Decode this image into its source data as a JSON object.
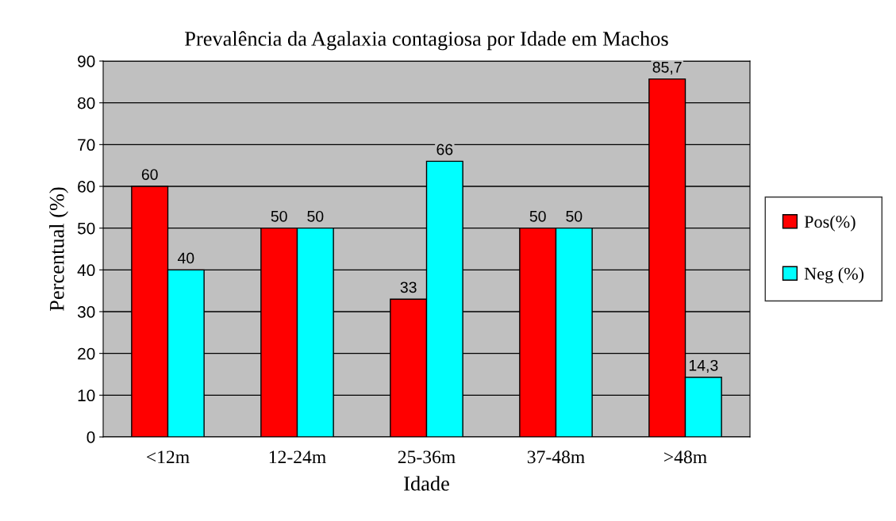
{
  "chart_data": {
    "type": "bar",
    "title": "Prevalência da Agalaxia contagiosa por Idade em Machos",
    "xlabel": "Idade",
    "ylabel": "Percentual (%)",
    "categories": [
      "<12m",
      "12-24m",
      "25-36m",
      "37-48m",
      ">48m"
    ],
    "series": [
      {
        "name": "Pos(%)",
        "color": "#ff0000",
        "values": [
          60,
          50,
          33,
          50,
          85.7
        ],
        "value_labels": [
          "60",
          "50",
          "33",
          "50",
          "85,7"
        ]
      },
      {
        "name": "Neg (%)",
        "color": "#00ffff",
        "values": [
          40,
          50,
          66,
          50,
          14.3
        ],
        "value_labels": [
          "40",
          "50",
          "66",
          "50",
          "14,3"
        ]
      }
    ],
    "ylim": [
      0,
      90
    ],
    "yticks": [
      0,
      10,
      20,
      30,
      40,
      50,
      60,
      70,
      80,
      90
    ],
    "grid": "y",
    "legend": "right"
  }
}
